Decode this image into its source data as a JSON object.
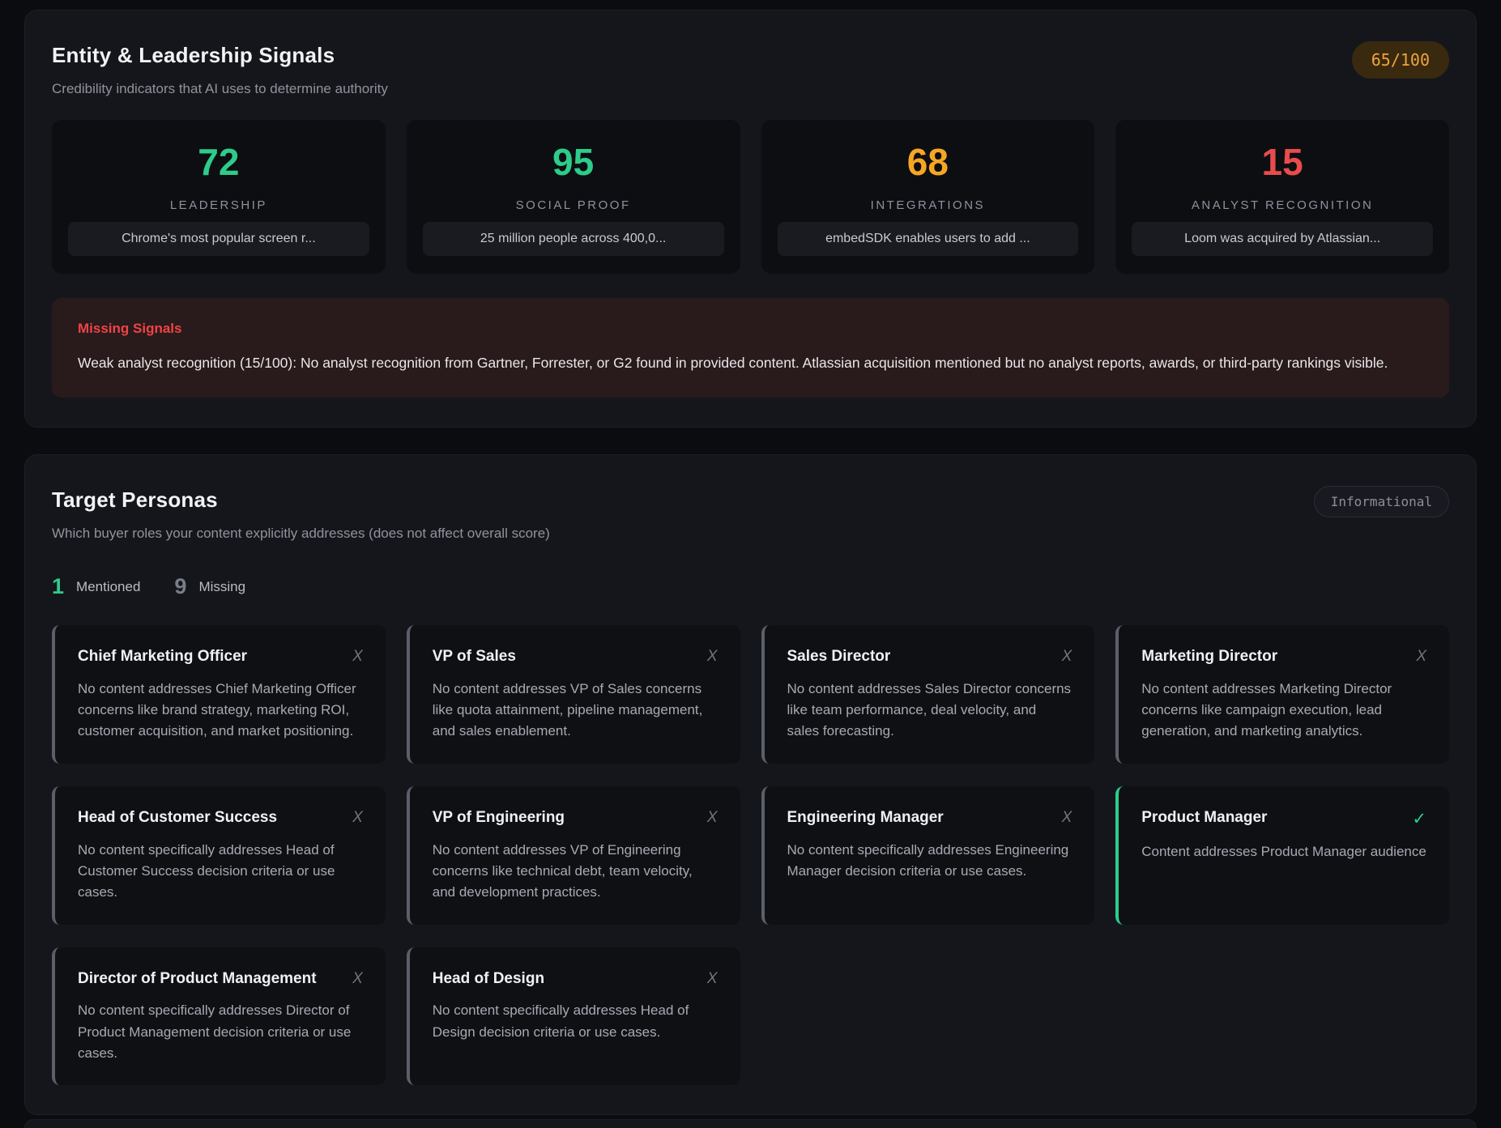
{
  "entity_section": {
    "title": "Entity & Leadership Signals",
    "subtitle": "Credibility indicators that AI uses to determine authority",
    "score_badge": "65/100",
    "colors": {
      "green": "#2ecc8b",
      "orange": "#f5a623",
      "red": "#e84c4c"
    },
    "metrics": [
      {
        "value": "72",
        "label": "LEADERSHIP",
        "quote": "Chrome's most popular screen r...",
        "color": "#2ecc8b"
      },
      {
        "value": "95",
        "label": "SOCIAL PROOF",
        "quote": "25 million people across 400,0...",
        "color": "#2ecc8b"
      },
      {
        "value": "68",
        "label": "INTEGRATIONS",
        "quote": "embedSDK enables users to add ...",
        "color": "#f5a623"
      },
      {
        "value": "15",
        "label": "ANALYST RECOGNITION",
        "quote": "Loom was acquired by Atlassian...",
        "color": "#e84c4c"
      }
    ],
    "missing_signals": {
      "title": "Missing Signals",
      "body": "Weak analyst recognition (15/100): No analyst recognition from Gartner, Forrester, or G2 found in provided content. Atlassian acquisition mentioned but no analyst reports, awards, or third-party rankings visible."
    }
  },
  "personas_section": {
    "title": "Target Personas",
    "badge": "Informational",
    "subtitle": "Which buyer roles your content explicitly addresses (does not affect overall score)",
    "mentioned_count": "1",
    "mentioned_label": "Mentioned",
    "missing_count": "9",
    "missing_label": "Missing",
    "icons": {
      "missing": "X",
      "mentioned": "✓"
    },
    "personas": [
      {
        "name": "Chief Marketing Officer",
        "status": "missing",
        "description": "No content addresses Chief Marketing Officer concerns like brand strategy, marketing ROI, customer acquisition, and market positioning."
      },
      {
        "name": "VP of Sales",
        "status": "missing",
        "description": "No content addresses VP of Sales concerns like quota attainment, pipeline management, and sales enablement."
      },
      {
        "name": "Sales Director",
        "status": "missing",
        "description": "No content addresses Sales Director concerns like team performance, deal velocity, and sales forecasting."
      },
      {
        "name": "Marketing Director",
        "status": "missing",
        "description": "No content addresses Marketing Director concerns like campaign execution, lead generation, and marketing analytics."
      },
      {
        "name": "Head of Customer Success",
        "status": "missing",
        "description": "No content specifically addresses Head of Customer Success decision criteria or use cases."
      },
      {
        "name": "VP of Engineering",
        "status": "missing",
        "description": "No content addresses VP of Engineering concerns like technical debt, team velocity, and development practices."
      },
      {
        "name": "Engineering Manager",
        "status": "missing",
        "description": "No content specifically addresses Engineering Manager decision criteria or use cases."
      },
      {
        "name": "Product Manager",
        "status": "mentioned",
        "description": "Content addresses Product Manager audience"
      },
      {
        "name": "Director of Product Management",
        "status": "missing",
        "description": "No content specifically addresses Director of Product Management decision criteria or use cases."
      },
      {
        "name": "Head of Design",
        "status": "missing",
        "description": "No content specifically addresses Head of Design decision criteria or use cases."
      }
    ]
  }
}
